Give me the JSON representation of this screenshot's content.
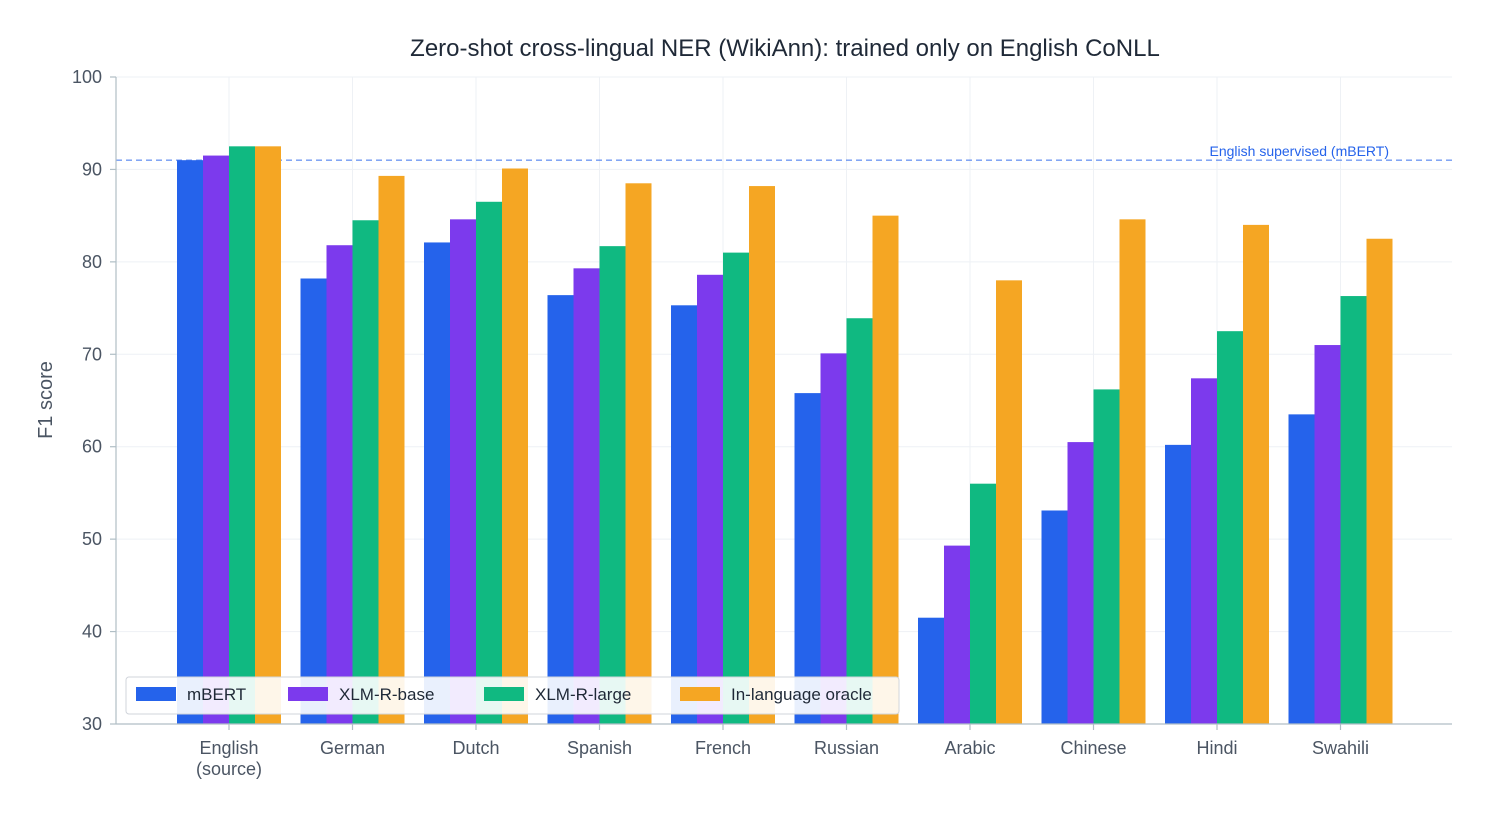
{
  "chart_data": {
    "type": "bar",
    "title": "Zero-shot cross-lingual NER (WikiAnn): trained only on English CoNLL",
    "ylabel": "F1 score",
    "xlabel": "",
    "ylim": [
      30,
      100
    ],
    "yticks": [
      30,
      40,
      50,
      60,
      70,
      80,
      90,
      100
    ],
    "grid": true,
    "legend_position": "bottom-left",
    "categories": [
      [
        "English",
        "(source)"
      ],
      [
        "German"
      ],
      [
        "Dutch"
      ],
      [
        "Spanish"
      ],
      [
        "French"
      ],
      [
        "Russian"
      ],
      [
        "Arabic"
      ],
      [
        "Chinese"
      ],
      [
        "Hindi"
      ],
      [
        "Swahili"
      ]
    ],
    "series": [
      {
        "name": "mBERT",
        "color": "#2563eb",
        "values": [
          91.0,
          78.2,
          82.1,
          76.4,
          75.3,
          65.8,
          41.5,
          53.1,
          60.2,
          63.5
        ]
      },
      {
        "name": "XLM-R-base",
        "color": "#7c3aed",
        "values": [
          91.5,
          81.8,
          84.6,
          79.3,
          78.6,
          70.1,
          49.3,
          60.5,
          67.4,
          71.0
        ]
      },
      {
        "name": "XLM-R-large",
        "color": "#10b981",
        "values": [
          92.5,
          84.5,
          86.5,
          81.7,
          81.0,
          73.9,
          56.0,
          66.2,
          72.5,
          76.3
        ]
      },
      {
        "name": "In-language oracle",
        "color": "#f5a623",
        "values": [
          92.5,
          89.3,
          90.1,
          88.5,
          88.2,
          85.0,
          78.0,
          84.6,
          84.0,
          82.5
        ]
      }
    ],
    "reference_line": {
      "value": 91.0,
      "label": "English supervised (mBERT)",
      "color": "#2563eb"
    }
  }
}
